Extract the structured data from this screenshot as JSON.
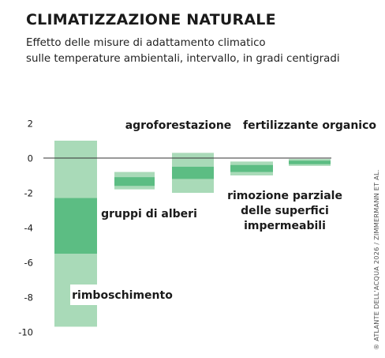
{
  "header": {
    "title": "CLIMATIZZAZIONE NATURALE",
    "subtitle_line1": "Effetto delle misure di adattamento climatico",
    "subtitle_line2": "sulle temperature ambientali, intervallo, in gradi centigradi"
  },
  "credit": "® ATLANTE DELL'ACQUA 2026 / ZIMMERMANN ET AL.",
  "colors": {
    "outer": "#a9dab8",
    "inner": "#5cbd83",
    "axis": "#333333",
    "text": "#1a1a1a"
  },
  "chart_data": {
    "type": "range-bar",
    "ylim": [
      -10,
      2
    ],
    "yticks": [
      2,
      0,
      -2,
      -4,
      -6,
      -8,
      -10
    ],
    "grid": false,
    "categories": [
      {
        "label": "rimboschimento",
        "outer": [
          -9.7,
          1.0
        ],
        "inner": [
          -5.5,
          -2.3
        ]
      },
      {
        "label": "gruppi di alberi",
        "outer": [
          -1.8,
          -0.8
        ],
        "inner": [
          -1.6,
          -1.1
        ]
      },
      {
        "label": "agroforestazione",
        "outer": [
          -2.0,
          0.3
        ],
        "inner": [
          -1.2,
          -0.5
        ]
      },
      {
        "label": "rimozione parziale delle superfici impermeabili",
        "label_lines": [
          "rimozione parziale",
          "delle superfici",
          "impermeabili"
        ],
        "outer": [
          -1.0,
          -0.2
        ],
        "inner": [
          -0.8,
          -0.4
        ]
      },
      {
        "label": "fertilizzante organico",
        "outer": [
          -0.45,
          -0.05
        ],
        "inner": [
          -0.35,
          -0.15
        ]
      }
    ]
  }
}
